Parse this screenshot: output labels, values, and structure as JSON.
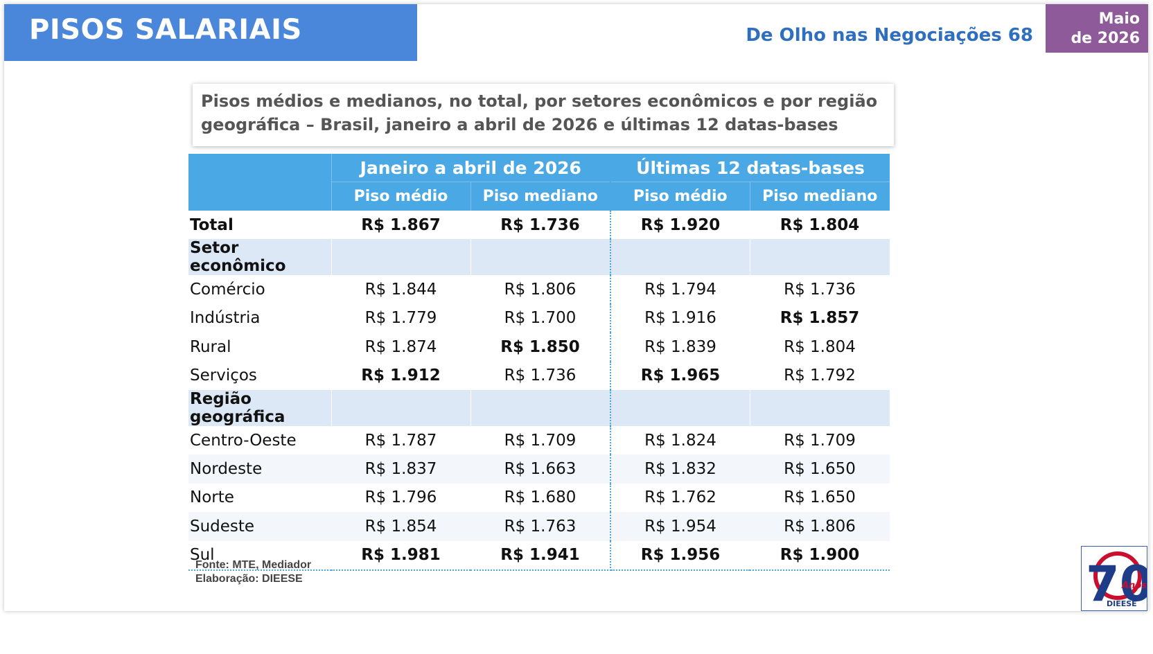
{
  "header": {
    "title": "PISOS SALARIAIS",
    "subtitle": "De Olho nas Negociações 68",
    "date_line1": "Maio",
    "date_line2": "de 2026"
  },
  "caption": {
    "line1": "Pisos médios e medianos, no total, por setores econômicos e por região",
    "line2": "geográfica – Brasil, janeiro a abril de 2026 e últimas 12 datas-bases"
  },
  "table": {
    "group_headers": [
      "Janeiro a abril de 2026",
      "Últimas 12 datas-bases"
    ],
    "sub_headers": [
      "Piso médio",
      "Piso mediano",
      "Piso médio",
      "Piso mediano"
    ],
    "total": {
      "label": "Total",
      "values": [
        "R$ 1.867",
        "R$ 1.736",
        "R$ 1.920",
        "R$ 1.804"
      ]
    },
    "sections": [
      {
        "label": "Setor econômico",
        "rows": [
          {
            "label": "Comércio",
            "values": [
              "R$ 1.844",
              "R$ 1.806",
              "R$ 1.794",
              "R$ 1.736"
            ]
          },
          {
            "label": "Indústria",
            "values": [
              "R$ 1.779",
              "R$ 1.700",
              "R$ 1.916",
              "R$ 1.857"
            ]
          },
          {
            "label": "Rural",
            "values": [
              "R$ 1.874",
              "R$ 1.850",
              "R$ 1.839",
              "R$ 1.804"
            ]
          },
          {
            "label": "Serviços",
            "values": [
              "R$ 1.912",
              "R$ 1.736",
              "R$ 1.965",
              "R$ 1.792"
            ]
          }
        ]
      },
      {
        "label": "Região geográfica",
        "rows": [
          {
            "label": "Centro-Oeste",
            "values": [
              "R$ 1.787",
              "R$ 1.709",
              "R$ 1.824",
              "R$ 1.709"
            ]
          },
          {
            "label": "Nordeste",
            "values": [
              "R$ 1.837",
              "R$ 1.663",
              "R$ 1.832",
              "R$ 1.650"
            ]
          },
          {
            "label": "Norte",
            "values": [
              "R$ 1.796",
              "R$ 1.680",
              "R$ 1.762",
              "R$ 1.650"
            ]
          },
          {
            "label": "Sudeste",
            "values": [
              "R$ 1.854",
              "R$ 1.763",
              "R$ 1.954",
              "R$ 1.806"
            ]
          },
          {
            "label": "Sul",
            "values": [
              "R$ 1.981",
              "R$ 1.941",
              "R$ 1.956",
              "R$ 1.900"
            ]
          }
        ]
      }
    ]
  },
  "footer": {
    "fonte": "Fonte: MTE, Mediador",
    "elaboracao": "Elaboração: DIEESE"
  },
  "logo": {
    "number": "70",
    "anos": "Anos",
    "org": "DIEESE"
  }
}
